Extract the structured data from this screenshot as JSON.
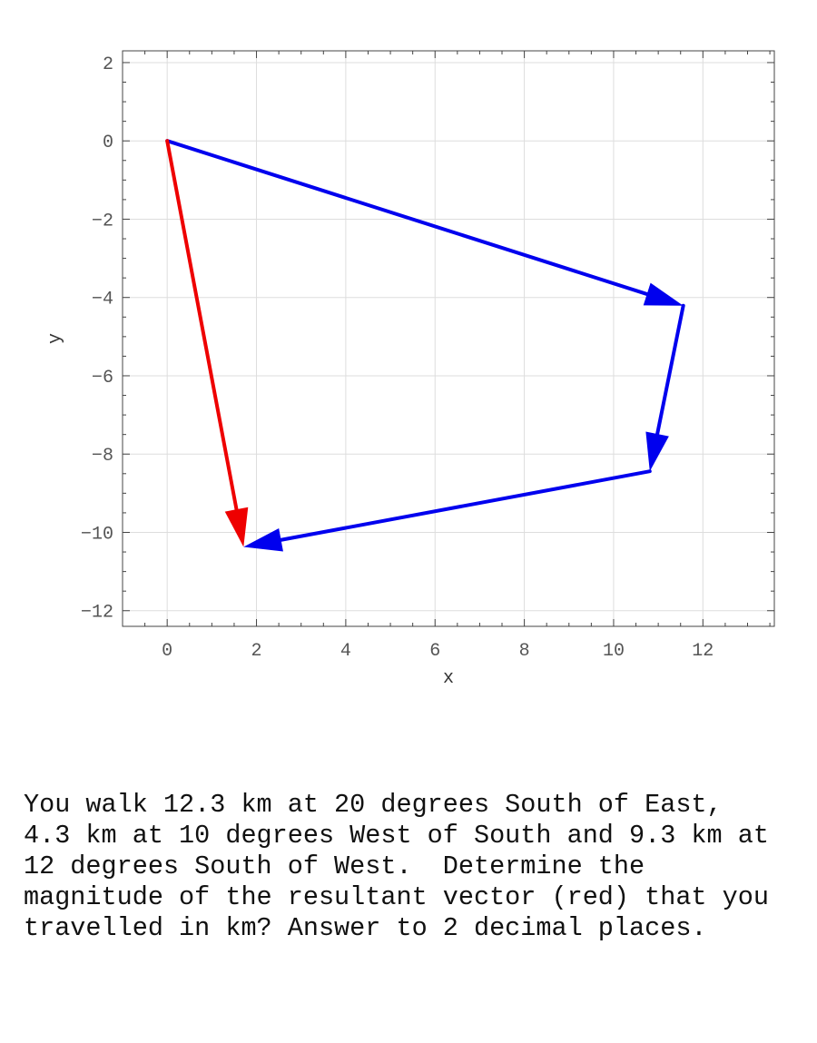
{
  "chart_data": {
    "type": "vector-plot",
    "xlabel": "x",
    "ylabel": "y",
    "xlim": [
      -1,
      13.6
    ],
    "ylim": [
      -12.4,
      2.3
    ],
    "xticks": [
      0,
      2,
      4,
      6,
      8,
      10,
      12
    ],
    "yticks": [
      2,
      0,
      -2,
      -4,
      -6,
      -8,
      -10,
      -12
    ],
    "grid": true,
    "vectors": [
      {
        "from": [
          0,
          0
        ],
        "to": [
          11.56,
          -4.21
        ],
        "color": "#0000ee"
      },
      {
        "from": [
          11.56,
          -4.21
        ],
        "to": [
          10.81,
          -8.44
        ],
        "color": "#0000ee"
      },
      {
        "from": [
          10.81,
          -8.44
        ],
        "to": [
          1.71,
          -10.37
        ],
        "color": "#0000ee"
      },
      {
        "from": [
          0,
          0
        ],
        "to": [
          1.71,
          -10.37
        ],
        "color": "#ee0000"
      }
    ]
  },
  "question_text": "You walk 12.3 km at 20 degrees South of East,\n4.3 km at 10 degrees West of South and 9.3 km at\n12 degrees South of West.  Determine the\nmagnitude of the resultant vector (red) that you\ntravelled in km? Answer to 2 decimal places."
}
